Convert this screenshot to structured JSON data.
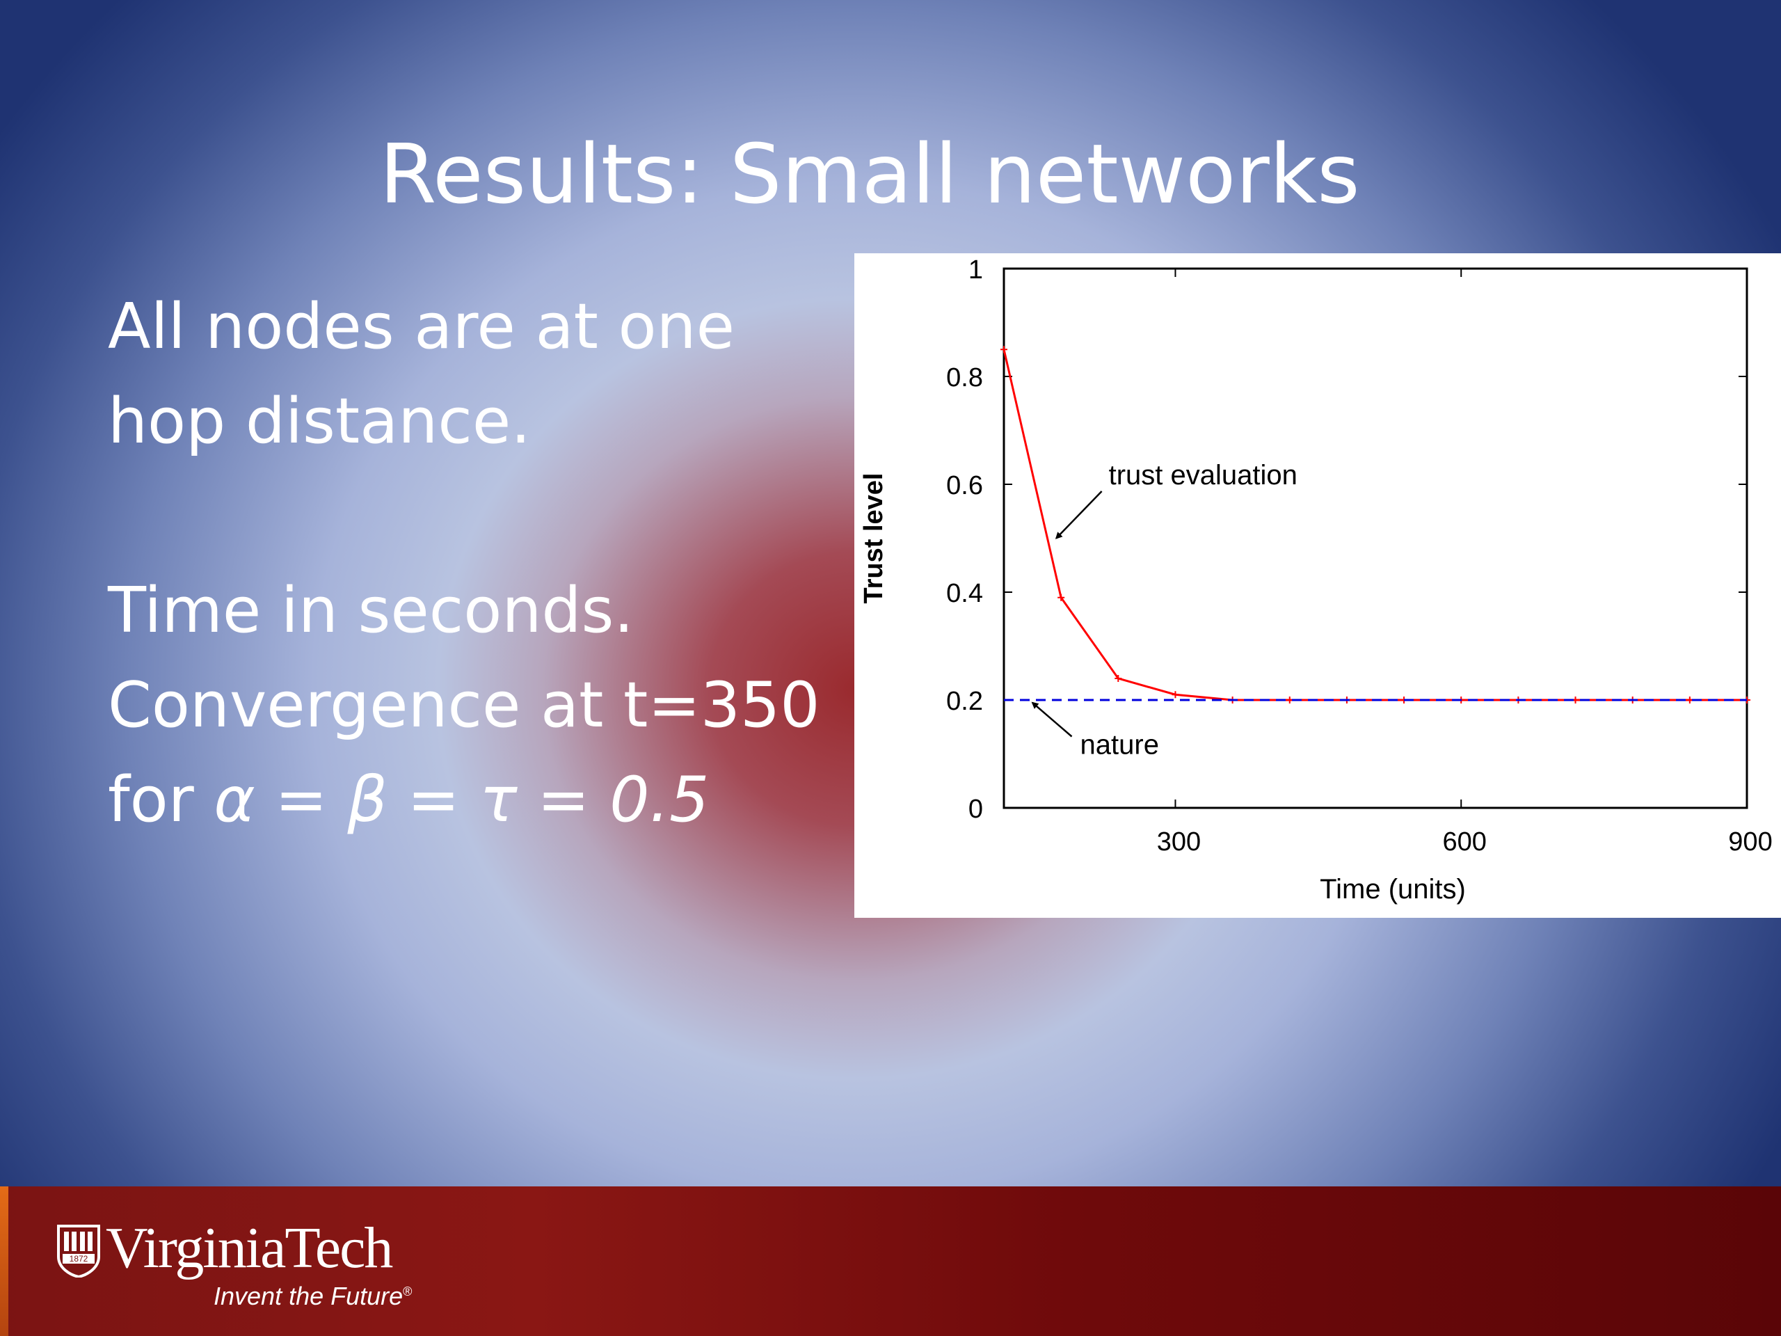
{
  "slide": {
    "title": "Results: Small networks",
    "para1_line1": "All nodes are at one",
    "para1_line2": "hop distance.",
    "para2_line1": "Time in seconds.",
    "para2_line2": "Convergence at t=350",
    "para2_line3_prefix": "for ",
    "para2_line3_formula": "α = β = τ = 0.5"
  },
  "footer": {
    "logo_name": "VirginiaTech",
    "logo_year": "1872",
    "tagline": "Invent the Future",
    "registered_mark": "®"
  },
  "colors": {
    "title_text": "#ffffff",
    "footer_maroon": "#6f0a0b",
    "footer_orange_accent": "#e46b17",
    "series_trust": "#ff0000",
    "series_nature": "#0000dd"
  },
  "chart_data": {
    "type": "line",
    "title": "",
    "xlabel": "Time (units)",
    "ylabel": "Trust level",
    "xlim": [
      120,
      900
    ],
    "ylim": [
      0,
      1
    ],
    "xticks": [
      300,
      600,
      900
    ],
    "yticks": [
      0,
      0.2,
      0.4,
      0.6,
      0.8,
      1
    ],
    "ytick_labels": [
      "0",
      "0.2",
      "0.4",
      "0.6",
      "0.8",
      "1"
    ],
    "grid": false,
    "series": [
      {
        "name": "trust evaluation",
        "style": "solid-with-markers",
        "x": [
          120,
          180,
          240,
          300,
          360,
          420,
          480,
          540,
          600,
          660,
          720,
          780,
          840,
          900
        ],
        "y": [
          0.85,
          0.39,
          0.24,
          0.21,
          0.2,
          0.2,
          0.2,
          0.2,
          0.2,
          0.2,
          0.2,
          0.2,
          0.2,
          0.2
        ]
      },
      {
        "name": "nature",
        "style": "dashed",
        "x": [
          120,
          900
        ],
        "y": [
          0.2,
          0.2
        ]
      }
    ],
    "annotations": [
      {
        "text": "trust evaluation",
        "x": 230,
        "y": 0.6,
        "arrow_to_x": 175,
        "arrow_to_y": 0.5
      },
      {
        "text": "nature",
        "x": 200,
        "y": 0.1,
        "arrow_to_x": 150,
        "arrow_to_y": 0.195
      }
    ]
  }
}
